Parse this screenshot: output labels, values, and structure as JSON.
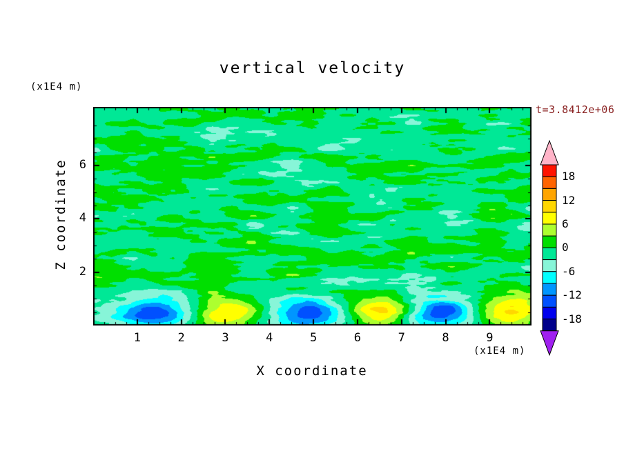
{
  "title": "vertical velocity",
  "annotations": {
    "time_label": "t=3.8412e+06",
    "time_color": "#8B2323"
  },
  "axes": {
    "x": {
      "label": "X coordinate",
      "unit": "(x1E4 m)",
      "ticks": [
        1,
        2,
        3,
        4,
        5,
        6,
        7,
        8,
        9
      ],
      "minor_step": 0.25
    },
    "z": {
      "label": "Z coordinate",
      "unit": "(x1E4 m)",
      "ticks": [
        2,
        4,
        6
      ],
      "minor_step": 0.5
    }
  },
  "colorbar": {
    "tick_labels": [
      "18",
      "12",
      "6",
      "0",
      "-6",
      "-12",
      "-18"
    ],
    "tick_values": [
      18,
      12,
      6,
      0,
      -6,
      -12,
      -18
    ],
    "levels_min": -21,
    "levels_max": 21,
    "step": 3,
    "colors_low_to_high": [
      "#00008B",
      "#0000EE",
      "#0050FF",
      "#0096FF",
      "#00FFFF",
      "#87F5D8",
      "#00E896",
      "#00DF00",
      "#ADFF2F",
      "#FFFF00",
      "#FFD700",
      "#FFA500",
      "#FF6400",
      "#FF1400"
    ],
    "over_arrow_color": "#FFB4C8",
    "under_arrow_color": "#A020F0"
  },
  "chart_data": {
    "type": "heatmap",
    "title": "vertical velocity",
    "xlabel": "X coordinate (x1E4 m)",
    "ylabel": "Z coordinate (x1E4 m)",
    "time": "t=3.8412e+06",
    "x_range": [
      0,
      9.95
    ],
    "z_range": [
      0,
      8.2
    ],
    "contour_interval": 3,
    "levels": [
      -21,
      -18,
      -15,
      -12,
      -9,
      -6,
      -3,
      0,
      3,
      6,
      9,
      12,
      15,
      18,
      21
    ],
    "field": {
      "description": "Mostly weak mottled field near 0 (green/spring-green bins) aloft; shallow convective layer below z~1.8 with alternating strong updrafts (yellow, w~+6..+11) and downdrafts (cyan/blue cores, w~-6..-12).",
      "background_noise_amplitude": 2.9,
      "noise_bias": -0.25,
      "noise_seed": 1337,
      "noise_octaves": [
        [
          11,
          26,
          1.0
        ],
        [
          22,
          52,
          0.55
        ],
        [
          44,
          104,
          0.3
        ]
      ],
      "boundary_layer": {
        "baseline_amplitude": -1.6,
        "baseline_width_z": 1.0,
        "cell_center_z": 0.5,
        "cell_width_z": 0.6,
        "cell_sigma_x": 0.8,
        "cell_amplitude": 11.0,
        "downdraft_amplitude": -12.2,
        "updraft_centers_x": [
          3.05,
          6.55,
          9.45
        ],
        "downdraft_centers_x": [
          1.33,
          4.84,
          7.88
        ]
      }
    }
  }
}
